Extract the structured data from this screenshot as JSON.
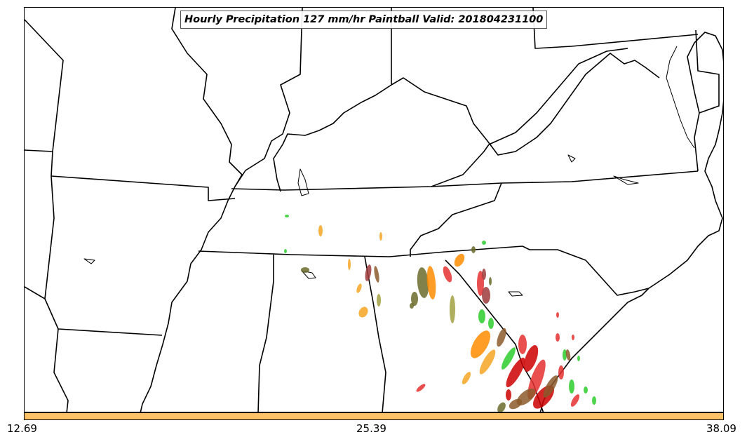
{
  "title": "Hourly Precipitation 127 mm/hr Paintball Valid: 201804231100",
  "colorbar": {
    "color": "#ffc266",
    "ticks": [
      "12.69",
      "25.39",
      "38.09"
    ]
  },
  "colors": {
    "border": "#000000",
    "paintball_palette": [
      "#2ecc2e",
      "#ff8c00",
      "#f5a623",
      "#e53030",
      "#cc0000",
      "#8b5a2b",
      "#6b6b2b",
      "#9e3b3b",
      "#a0a040"
    ]
  }
}
